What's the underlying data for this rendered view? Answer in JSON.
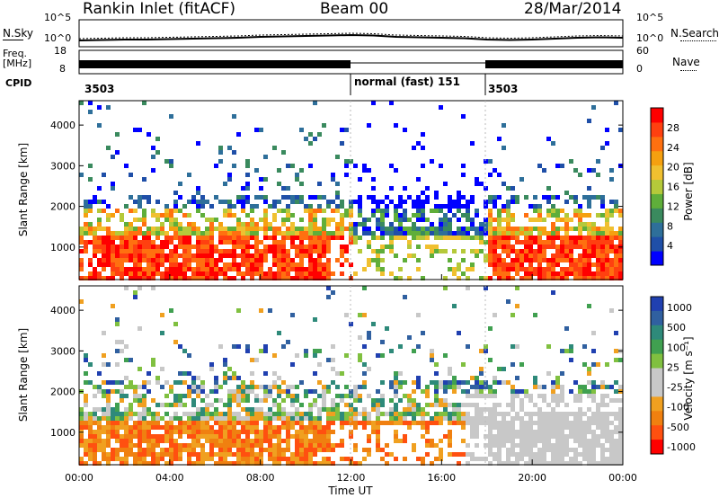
{
  "header": {
    "station": "Rankin Inlet (fitACF)",
    "beam": "Beam 00",
    "date": "28/Mar/2014"
  },
  "side_labels": {
    "nsky": "N.Sky",
    "freq": "Freq.",
    "mhz": "[MHz]",
    "cpid": "CPID",
    "nsearch": "N.Search",
    "nave": "Nave",
    "nsky_top": "10^5",
    "nsky_bot": "10^0",
    "nsearch_top": "10^5",
    "nsearch_bot": "10^0",
    "freq_top": "18",
    "freq_bot": "8",
    "nave_top": "60",
    "nave_bot": "0"
  },
  "cpid_segments": [
    {
      "label": "3503",
      "start_hour": 0
    },
    {
      "label": "normal (fast) 151",
      "start_hour": 12
    },
    {
      "label": "3503",
      "start_hour": 18
    }
  ],
  "colors": {
    "power": [
      "#0000ff",
      "#1f4fa8",
      "#2e6f9a",
      "#3a8a5e",
      "#5fae3a",
      "#b5c93a",
      "#f0c030",
      "#f5a010",
      "#ff7010",
      "#ff4010",
      "#ff0000"
    ],
    "velocity": [
      "#2040b0",
      "#3060a0",
      "#2e8a7a",
      "#40a050",
      "#80c040",
      "#c8c8c8",
      "#c8c8c8",
      "#f0a020",
      "#f08010",
      "#ff5010",
      "#ff0000"
    ]
  },
  "chart_data": [
    {
      "type": "heatmap",
      "name": "power-panel",
      "xlabel": "",
      "ylabel": "Slant Range [km]",
      "xlim": [
        0,
        24
      ],
      "ylim": [
        200,
        4600
      ],
      "yticks": [
        1000,
        2000,
        3000,
        4000
      ],
      "colorbar": {
        "label": "Power [dB]",
        "ticks": [
          4,
          8,
          12,
          16,
          20,
          24,
          28
        ],
        "range": [
          0,
          32
        ]
      }
    },
    {
      "type": "heatmap",
      "name": "velocity-panel",
      "xlabel": "Time UT",
      "ylabel": "Slant Range [km]",
      "xlim": [
        0,
        24
      ],
      "ylim": [
        200,
        4600
      ],
      "yticks": [
        1000,
        2000,
        3000,
        4000
      ],
      "xtick_labels": [
        "00:00",
        "04:00",
        "08:00",
        "12:00",
        "16:00",
        "20:00",
        "00:00"
      ],
      "colorbar": {
        "label": "Velocity [m s⁻¹]",
        "ticks": [
          "1000",
          "500",
          "100",
          "25",
          "-25",
          "-100",
          "-500",
          "-1000"
        ]
      }
    },
    {
      "type": "line",
      "name": "noise-panel",
      "series": [
        {
          "values": [
            1.4,
            1.5,
            1.6,
            1.6,
            1.7,
            1.8,
            1.9,
            2.0,
            2.2,
            2.3,
            2.4,
            2.5,
            2.6,
            2.5,
            2.2,
            2.1,
            2.0,
            1.9,
            1.6,
            1.5,
            1.6,
            1.8,
            2.0,
            2.1,
            2.0
          ]
        }
      ]
    }
  ]
}
